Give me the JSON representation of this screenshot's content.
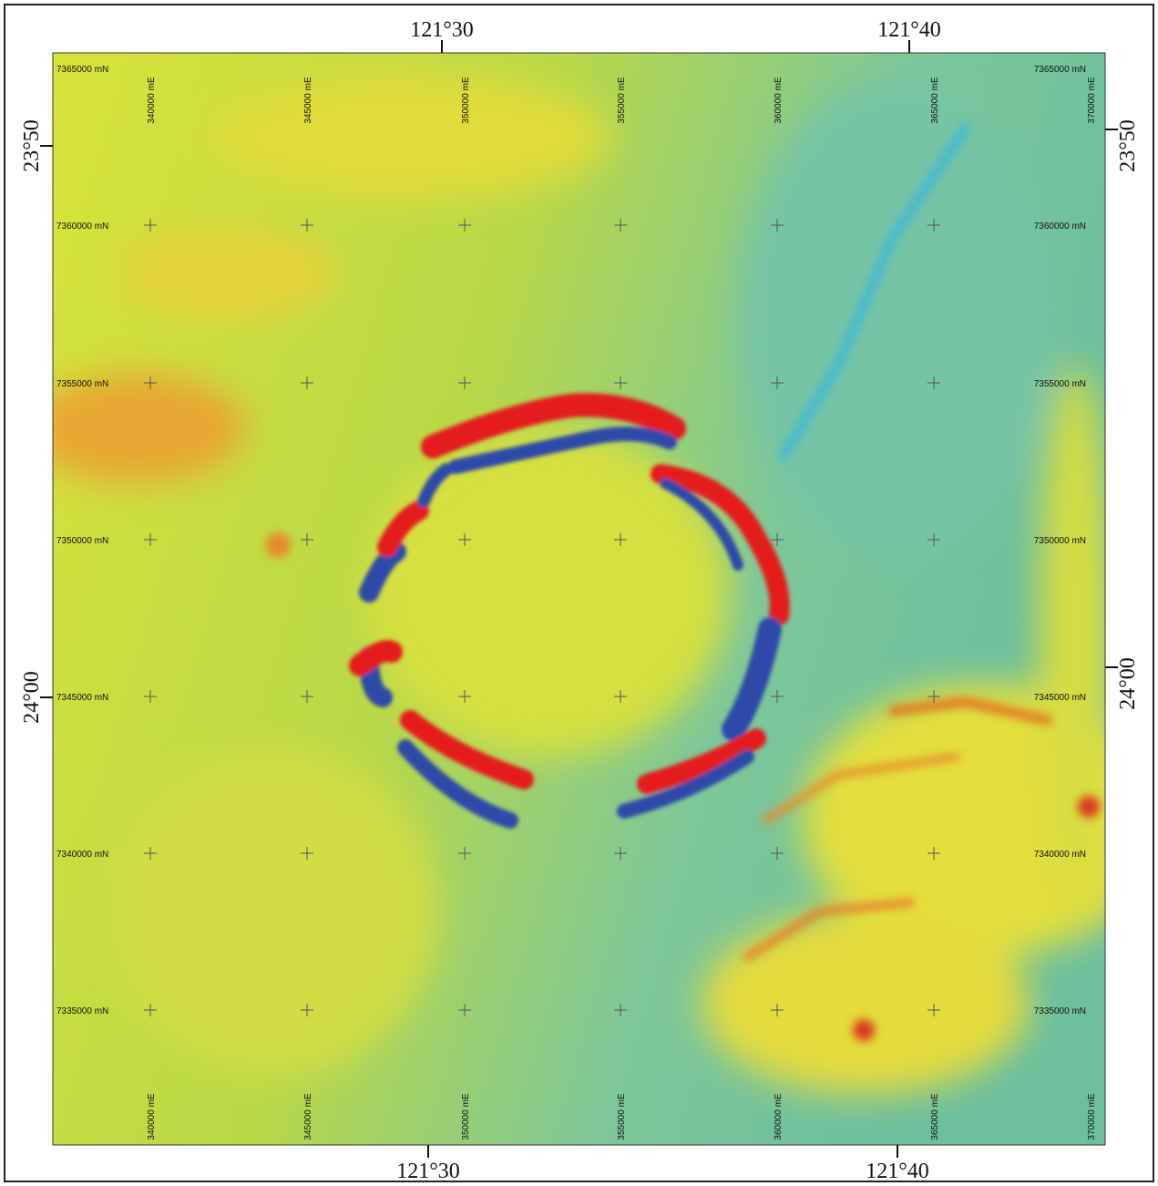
{
  "map": {
    "top_longitudes": [
      "121°30",
      "121°40"
    ],
    "bottom_longitudes": [
      "121°30",
      "121°40"
    ],
    "left_latitudes": [
      "23°50",
      "24°00"
    ],
    "right_latitudes": [
      "23°50",
      "24°00"
    ],
    "eastings_top": [
      "340000 mE",
      "345000 mE",
      "350000 mE",
      "355000 mE",
      "360000 mE",
      "365000 mE",
      "370000 mE"
    ],
    "eastings_bottom": [
      "340000 mE",
      "345000 mE",
      "350000 mE",
      "355000 mE",
      "360000 mE",
      "365000 mE",
      "370000 mE"
    ],
    "northings_left": [
      "7365000 mN",
      "7360000 mN",
      "7355000 mN",
      "7350000 mN",
      "7345000 mN",
      "7340000 mN",
      "7335000 mN"
    ],
    "northings_right": [
      "7365000 mN",
      "7360000 mN",
      "7355000 mN",
      "7350000 mN",
      "7345000 mN",
      "7340000 mN",
      "7335000 mN"
    ]
  }
}
